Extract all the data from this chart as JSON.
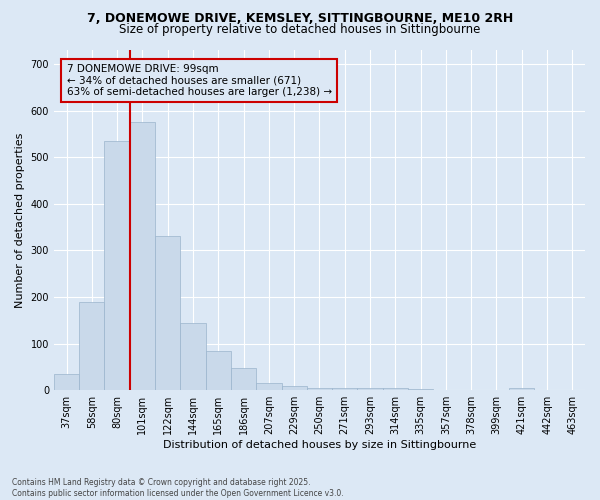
{
  "title_line1": "7, DONEMOWE DRIVE, KEMSLEY, SITTINGBOURNE, ME10 2RH",
  "title_line2": "Size of property relative to detached houses in Sittingbourne",
  "xlabel": "Distribution of detached houses by size in Sittingbourne",
  "ylabel": "Number of detached properties",
  "categories": [
    "37sqm",
    "58sqm",
    "80sqm",
    "101sqm",
    "122sqm",
    "144sqm",
    "165sqm",
    "186sqm",
    "207sqm",
    "229sqm",
    "250sqm",
    "271sqm",
    "293sqm",
    "314sqm",
    "335sqm",
    "357sqm",
    "378sqm",
    "399sqm",
    "421sqm",
    "442sqm",
    "463sqm"
  ],
  "values": [
    35,
    190,
    535,
    575,
    330,
    145,
    85,
    48,
    15,
    10,
    5,
    5,
    5,
    5,
    2,
    0,
    0,
    0,
    5,
    0,
    0
  ],
  "bar_color": "#c9d9ea",
  "bar_edge_color": "#9ab4cc",
  "vline_position": 2.5,
  "vline_color": "#cc0000",
  "annotation_text": "7 DONEMOWE DRIVE: 99sqm\n← 34% of detached houses are smaller (671)\n63% of semi-detached houses are larger (1,238) →",
  "annotation_box_color": "#cc0000",
  "ylim": [
    0,
    730
  ],
  "yticks": [
    0,
    100,
    200,
    300,
    400,
    500,
    600,
    700
  ],
  "background_color": "#dce8f5",
  "grid_color": "#ffffff",
  "footer_line1": "Contains HM Land Registry data © Crown copyright and database right 2025.",
  "footer_line2": "Contains public sector information licensed under the Open Government Licence v3.0.",
  "title_fontsize": 9,
  "subtitle_fontsize": 8.5,
  "axis_label_fontsize": 8,
  "tick_fontsize": 7,
  "annotation_fontsize": 7.5
}
